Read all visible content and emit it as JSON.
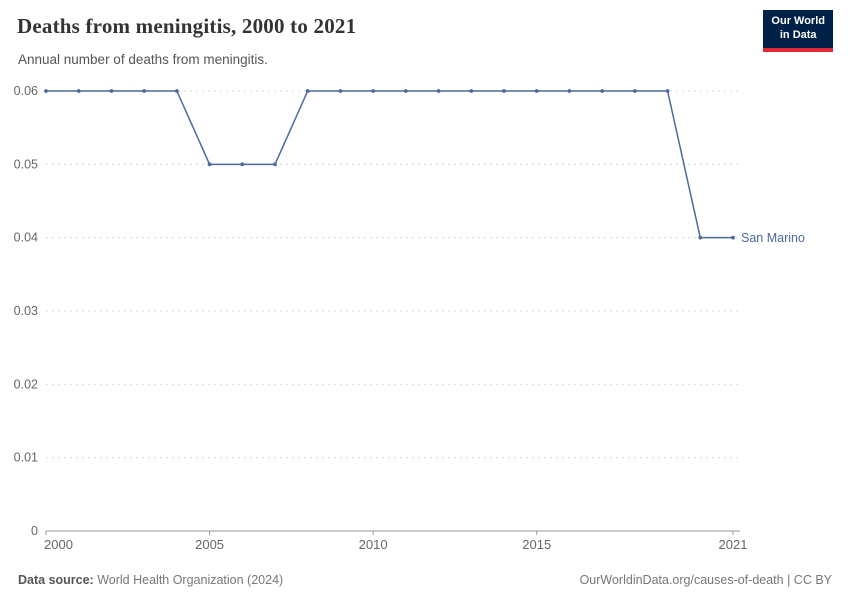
{
  "header": {
    "title": "Deaths from meningitis, 2000 to 2021",
    "subtitle": "Annual number of deaths from meningitis.",
    "logo": {
      "line1": "Our World",
      "line2": "in Data"
    }
  },
  "footer": {
    "datasource_label": "Data source:",
    "datasource_value": "World Health Organization (2024)",
    "credit": "OurWorldinData.org/causes-of-death | CC BY"
  },
  "colors": {
    "line": "#4C6A9C",
    "grid": "#d9d9d9",
    "axis": "#999999",
    "tick_text": "#666666",
    "logo_bg": "#002147",
    "logo_accent": "#dc2a36"
  },
  "chart_data": {
    "type": "line",
    "title": "Deaths from meningitis, 2000 to 2021",
    "xlabel": "",
    "ylabel": "",
    "x": [
      2000,
      2001,
      2002,
      2003,
      2004,
      2005,
      2006,
      2007,
      2008,
      2009,
      2010,
      2011,
      2012,
      2013,
      2014,
      2015,
      2016,
      2017,
      2018,
      2019,
      2020,
      2021
    ],
    "series": [
      {
        "name": "San Marino",
        "color": "#4C6A9C",
        "values": [
          0.06,
          0.06,
          0.06,
          0.06,
          0.06,
          0.05,
          0.05,
          0.05,
          0.06,
          0.06,
          0.06,
          0.06,
          0.06,
          0.06,
          0.06,
          0.06,
          0.06,
          0.06,
          0.06,
          0.06,
          0.04,
          0.04
        ]
      }
    ],
    "xlim": [
      2000,
      2021
    ],
    "ylim": [
      0,
      0.06
    ],
    "yticks": [
      0,
      0.01,
      0.02,
      0.03,
      0.04,
      0.05,
      0.06
    ],
    "xticks": [
      2000,
      2005,
      2010,
      2015,
      2021
    ],
    "grid": "horizontal-dashed",
    "legend": "end-of-line-label",
    "markers": true
  }
}
